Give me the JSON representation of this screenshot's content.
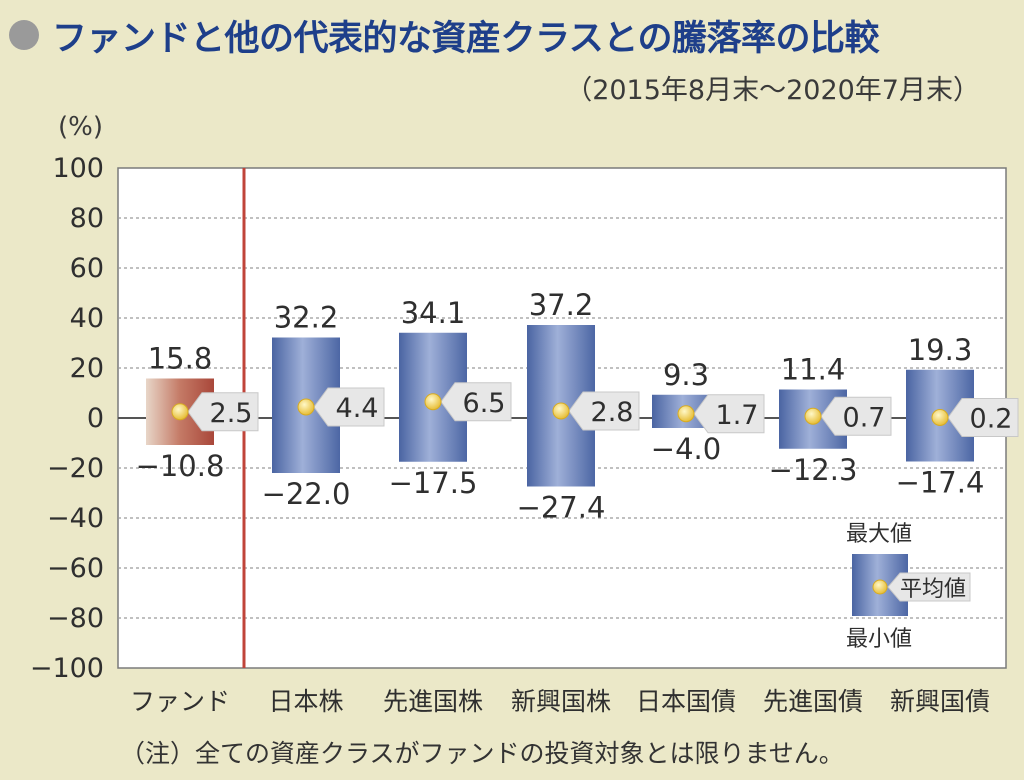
{
  "title": "ファンドと他の代表的な資産クラスとの騰落率の比較",
  "subtitle": "（2015年8月末～2020年7月末）",
  "unit_label": "(%)",
  "note": "（注）全ての資産クラスがファンドの投資対象とは限りません。",
  "legend": {
    "max": "最大値",
    "avg": "平均値",
    "min": "最小値"
  },
  "colors": {
    "fund_bar": "#b5574a",
    "asset_bar": "#4f6aa8",
    "avg_dot": "#f2d14e",
    "divider": "#c0443a",
    "background": "#ebe8c8",
    "plot_bg": "#ffffff"
  },
  "chart_data": {
    "type": "bar",
    "title": "ファンドと他の代表的な資産クラスとの騰落率の比較",
    "ylabel": "(%)",
    "ylim": [
      -100,
      100
    ],
    "yticks": [
      "100",
      "80",
      "60",
      "40",
      "20",
      "0",
      "-20",
      "-40",
      "-60",
      "-80",
      "-100"
    ],
    "categories": [
      "ファンド",
      "日本株",
      "先進国株",
      "新興国株",
      "日本国債",
      "先進国債",
      "新興国債"
    ],
    "series": [
      {
        "name": "最大値",
        "values": [
          15.8,
          32.2,
          34.1,
          37.2,
          9.3,
          11.4,
          19.3
        ]
      },
      {
        "name": "平均値",
        "values": [
          2.5,
          4.4,
          6.5,
          2.8,
          1.7,
          0.7,
          0.2
        ]
      },
      {
        "name": "最小値",
        "values": [
          -10.8,
          -22.0,
          -17.5,
          -27.4,
          -4.0,
          -12.3,
          -17.4
        ]
      }
    ],
    "max_labels": [
      "15.8",
      "32.2",
      "34.1",
      "37.2",
      "9.3",
      "11.4",
      "19.3"
    ],
    "avg_labels": [
      "2.5",
      "4.4",
      "6.5",
      "2.8",
      "1.7",
      "0.7",
      "0.2"
    ],
    "min_labels": [
      "−10.8",
      "−22.0",
      "−17.5",
      "−27.4",
      "−4.0",
      "−12.3",
      "−17.4"
    ],
    "grid": true
  }
}
